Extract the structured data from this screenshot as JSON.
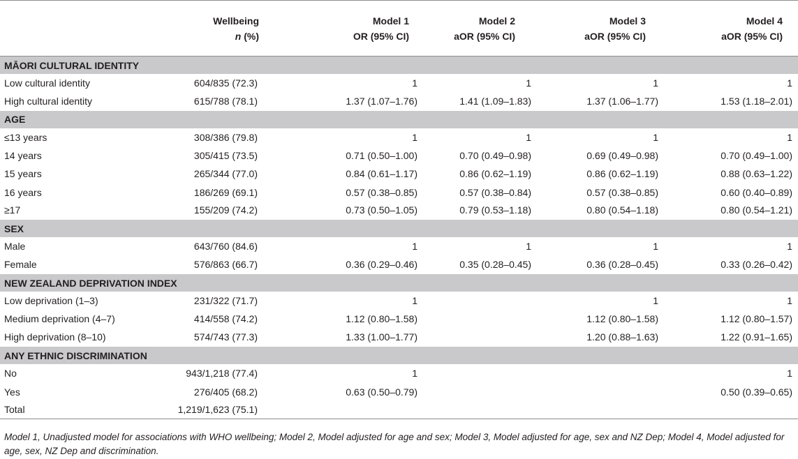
{
  "header": {
    "col_wellbeing_line1": "Wellbeing",
    "col_wellbeing_n": "n",
    "col_wellbeing_pct": " (%)",
    "col_model1_line1": "Model 1",
    "col_model1_line2": "OR (95% CI)",
    "col_model2_line1": "Model 2",
    "col_model2_line2": "aOR (95% CI)",
    "col_model3_line1": "Model 3",
    "col_model3_line2": "aOR (95% CI)",
    "col_model4_line1": "Model 4",
    "col_model4_line2": "aOR (95% CI)"
  },
  "sections": [
    {
      "title": "MĀORI CULTURAL IDENTITY",
      "rows": [
        {
          "label": "Low cultural identity",
          "wellbeing": "604/835 (72.3)",
          "m1": "1",
          "m2": "1",
          "m3": "1",
          "m4": "1"
        },
        {
          "label": "High cultural identity",
          "wellbeing": "615/788 (78.1)",
          "m1": "1.37 (1.07–1.76)",
          "m2": "1.41 (1.09–1.83)",
          "m3": "1.37 (1.06–1.77)",
          "m4": "1.53 (1.18–2.01)"
        }
      ]
    },
    {
      "title": "AGE",
      "rows": [
        {
          "label": "≤13 years",
          "wellbeing": "308/386 (79.8)",
          "m1": "1",
          "m2": "1",
          "m3": "1",
          "m4": "1"
        },
        {
          "label": "14 years",
          "wellbeing": "305/415 (73.5)",
          "m1": "0.71 (0.50–1.00)",
          "m2": "0.70 (0.49–0.98)",
          "m3": "0.69 (0.49–0.98)",
          "m4": "0.70 (0.49–1.00)"
        },
        {
          "label": "15 years",
          "wellbeing": "265/344 (77.0)",
          "m1": "0.84 (0.61–1.17)",
          "m2": "0.86 (0.62–1.19)",
          "m3": "0.86 (0.62–1.19)",
          "m4": "0.88 (0.63–1.22)"
        },
        {
          "label": "16 years",
          "wellbeing": "186/269 (69.1)",
          "m1": "0.57 (0.38–0.85)",
          "m2": "0.57 (0.38–0.84)",
          "m3": "0.57 (0.38–0.85)",
          "m4": "0.60 (0.40–0.89)"
        },
        {
          "label": "≥17",
          "wellbeing": "155/209 (74.2)",
          "m1": "0.73 (0.50–1.05)",
          "m2": "0.79 (0.53–1.18)",
          "m3": "0.80 (0.54–1.18)",
          "m4": "0.80 (0.54–1.21)"
        }
      ]
    },
    {
      "title": "SEX",
      "rows": [
        {
          "label": "Male",
          "wellbeing": "643/760 (84.6)",
          "m1": "1",
          "m2": "1",
          "m3": "1",
          "m4": "1"
        },
        {
          "label": "Female",
          "wellbeing": "576/863 (66.7)",
          "m1": "0.36 (0.29–0.46)",
          "m2": "0.35 (0.28–0.45)",
          "m3": "0.36 (0.28–0.45)",
          "m4": "0.33 (0.26–0.42)"
        }
      ]
    },
    {
      "title": "NEW ZEALAND DEPRIVATION INDEX",
      "rows": [
        {
          "label": "Low deprivation (1–3)",
          "wellbeing": "231/322 (71.7)",
          "m1": "1",
          "m2": "",
          "m3": "1",
          "m4": "1"
        },
        {
          "label": "Medium deprivation (4–7)",
          "wellbeing": "414/558 (74.2)",
          "m1": "1.12 (0.80–1.58)",
          "m2": "",
          "m3": "1.12 (0.80–1.58)",
          "m4": "1.12 (0.80–1.57)"
        },
        {
          "label": "High deprivation (8–10)",
          "wellbeing": "574/743 (77.3)",
          "m1": "1.33 (1.00–1.77)",
          "m2": "",
          "m3": "1.20 (0.88–1.63)",
          "m4": "1.22 (0.91–1.65)"
        }
      ]
    },
    {
      "title": "ANY ETHNIC DISCRIMINATION",
      "rows": [
        {
          "label": "No",
          "wellbeing": "943/1,218 (77.4)",
          "m1": "1",
          "m2": "",
          "m3": "",
          "m4": "1"
        },
        {
          "label": "Yes",
          "wellbeing": "276/405 (68.2)",
          "m1": "0.63 (0.50–0.79)",
          "m2": "",
          "m3": "",
          "m4": "0.50 (0.39–0.65)"
        },
        {
          "label": "Total",
          "wellbeing": "1,219/1,623 (75.1)",
          "m1": "",
          "m2": "",
          "m3": "",
          "m4": ""
        }
      ]
    }
  ],
  "footnote": "Model 1, Unadjusted model for associations with WHO wellbeing; Model 2, Model adjusted for age and sex; Model 3, Model adjusted for age, sex and NZ Dep; Model 4, Model adjusted for age, sex, NZ Dep and discrimination."
}
